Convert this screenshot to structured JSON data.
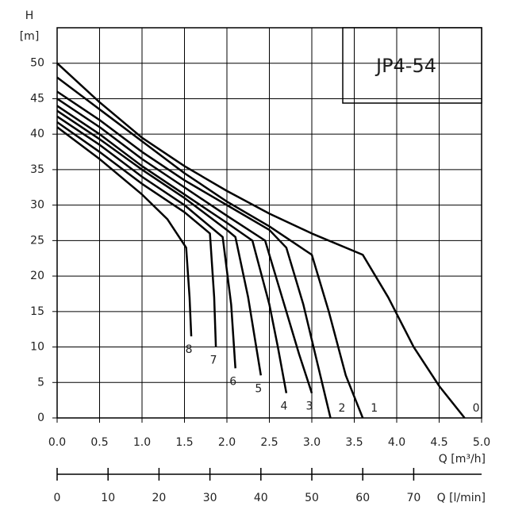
{
  "chart_data": {
    "type": "line",
    "title": "JP4-54",
    "y_label": "H",
    "y_unit": "[m]",
    "x_label": "Q [m³/h]",
    "x2_label": "Q [l/min]",
    "xlim": [
      0,
      5
    ],
    "ylim": [
      0,
      55
    ],
    "x2lim": [
      0,
      83.33
    ],
    "xticks": [
      {
        "value": 0,
        "label": "0.0"
      },
      0.5,
      {
        "value": 1,
        "label": "1.0"
      },
      1.5,
      {
        "value": 2,
        "label": "2.0"
      },
      2.5,
      {
        "value": 3,
        "label": "3.0"
      },
      3.5,
      {
        "value": 4,
        "label": "4.0"
      },
      4.5,
      {
        "value": 5,
        "label": "5.0"
      }
    ],
    "yticks": [
      0,
      5,
      10,
      15,
      20,
      25,
      30,
      35,
      40,
      45,
      50
    ],
    "x2ticks": [
      0,
      10,
      20,
      30,
      40,
      50,
      60,
      70
    ],
    "grid": true,
    "color": "#000000",
    "series": [
      {
        "name": "0",
        "x": [
          0,
          0.5,
          1.0,
          1.5,
          2.0,
          2.5,
          3.0,
          3.6,
          3.9,
          4.2,
          4.5,
          4.8
        ],
        "values": [
          50,
          44.5,
          39.5,
          35.5,
          32,
          28.8,
          26,
          23,
          17,
          10,
          4.5,
          0
        ]
      },
      {
        "name": "1",
        "x": [
          0,
          0.5,
          1,
          1.5,
          2,
          2.5,
          3.0,
          3.2,
          3.4,
          3.6
        ],
        "values": [
          48,
          43.5,
          39,
          34.5,
          30.5,
          27,
          23,
          15,
          6,
          0
        ]
      },
      {
        "name": "2",
        "x": [
          0,
          0.5,
          1,
          1.5,
          2,
          2.5,
          2.7,
          2.9,
          3.1,
          3.22
        ],
        "values": [
          46,
          42,
          37.5,
          33.5,
          30,
          26.5,
          24,
          16,
          6,
          0
        ]
      },
      {
        "name": "3",
        "x": [
          0,
          0.5,
          1,
          1.5,
          2,
          2.45,
          2.65,
          2.85,
          3.0
        ],
        "values": [
          45,
          41,
          36.5,
          32.5,
          28.5,
          25,
          17,
          9,
          3.5
        ]
      },
      {
        "name": "4",
        "x": [
          0,
          0.5,
          1,
          1.5,
          2,
          2.3,
          2.5,
          2.6,
          2.7
        ],
        "values": [
          44,
          40,
          35.5,
          31.5,
          27.5,
          25,
          16,
          10,
          3.5
        ]
      },
      {
        "name": "5",
        "x": [
          0,
          0.5,
          1,
          1.5,
          2,
          2.1,
          2.25,
          2.4
        ],
        "values": [
          43.3,
          39.3,
          35,
          31,
          26.5,
          25.5,
          17,
          6
        ]
      },
      {
        "name": "6",
        "x": [
          0,
          0.5,
          1,
          1.5,
          1.95,
          2.05,
          2.1
        ],
        "values": [
          42.5,
          38.5,
          34,
          30,
          25.5,
          16,
          7
        ]
      },
      {
        "name": "7",
        "x": [
          0,
          0.5,
          1,
          1.5,
          1.8,
          1.85,
          1.87
        ],
        "values": [
          41.7,
          37.5,
          33,
          29,
          26,
          17,
          10
        ]
      },
      {
        "name": "8",
        "x": [
          0,
          0.5,
          1,
          1.3,
          1.52,
          1.56,
          1.58
        ],
        "values": [
          41,
          36.5,
          31.5,
          28,
          24,
          17,
          11.5
        ]
      }
    ]
  }
}
